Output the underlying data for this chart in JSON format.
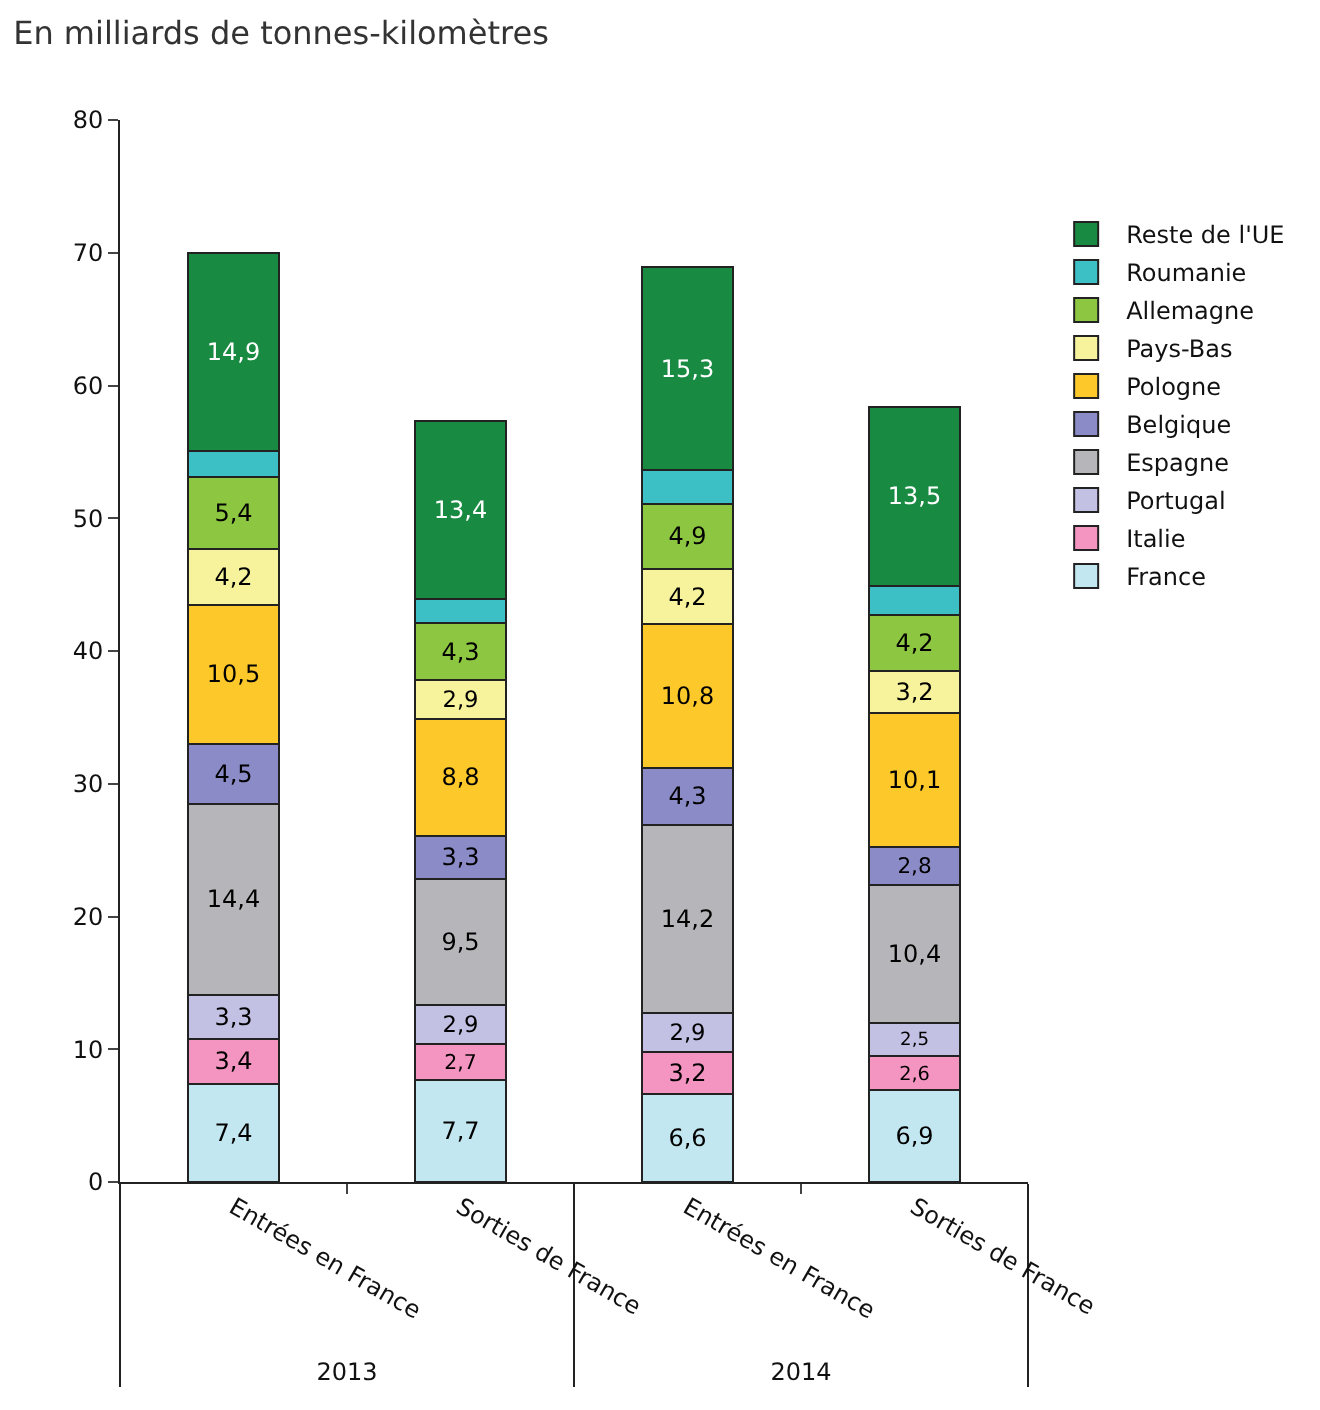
{
  "chart_data": {
    "type": "bar",
    "stacked": true,
    "subtitle": "En milliards de tonnes-kilomètres",
    "categories": [
      "Entrées en France",
      "Sorties de France",
      "Entrées en France",
      "Sorties de France"
    ],
    "annotations": [
      "2013",
      "2014"
    ],
    "series": [
      {
        "name": "France",
        "color": "#c3e7f0",
        "values": [
          7.4,
          7.7,
          6.6,
          6.9
        ],
        "value_labels": [
          "7,4",
          "7,7",
          "6,6",
          "6,9"
        ]
      },
      {
        "name": "Italie",
        "color": "#f395c0",
        "values": [
          3.4,
          2.7,
          3.2,
          2.6
        ],
        "value_labels": [
          "3,4",
          "2,7",
          "3,2",
          "2,6"
        ]
      },
      {
        "name": "Portugal",
        "color": "#c2c0e3",
        "values": [
          3.3,
          2.9,
          2.9,
          2.5
        ],
        "value_labels": [
          "3,3",
          "2,9",
          "2,9",
          "2,5"
        ]
      },
      {
        "name": "Espagne",
        "color": "#b6b6ba",
        "values": [
          14.4,
          9.5,
          14.2,
          10.4
        ],
        "value_labels": [
          "14,4",
          "9,5",
          "14,2",
          "10,4"
        ]
      },
      {
        "name": "Belgique",
        "color": "#8a8bc7",
        "values": [
          4.5,
          3.3,
          4.3,
          2.8
        ],
        "value_labels": [
          "4,5",
          "3,3",
          "4,3",
          "2,8"
        ]
      },
      {
        "name": "Pologne",
        "color": "#fdc82a",
        "values": [
          10.5,
          8.8,
          10.8,
          10.1
        ],
        "value_labels": [
          "10,5",
          "8,8",
          "10,8",
          "10,1"
        ]
      },
      {
        "name": "Pays-Bas",
        "color": "#f6f39c",
        "values": [
          4.2,
          2.9,
          4.2,
          3.2
        ],
        "value_labels": [
          "4,2",
          "2,9",
          "4,2",
          "3,2"
        ]
      },
      {
        "name": "Allemagne",
        "color": "#8dc640",
        "values": [
          5.4,
          4.3,
          4.9,
          4.2
        ],
        "value_labels": [
          "5,4",
          "4,3",
          "4,9",
          "4,2"
        ]
      },
      {
        "name": "Roumanie",
        "color": "#3dbfc6",
        "values": [
          2.0,
          1.8,
          2.5,
          2.2
        ]
      },
      {
        "name": "Reste de l'UE",
        "color": "#188a41",
        "values": [
          14.9,
          13.4,
          15.3,
          13.5
        ],
        "value_labels": [
          "14,9",
          "13,4",
          "15,3",
          "13,5"
        ]
      }
    ],
    "ylim": [
      0,
      80
    ],
    "yticks": [
      0,
      10,
      20,
      30,
      40,
      50,
      60,
      70,
      80
    ],
    "grid": false,
    "legend": "right"
  }
}
